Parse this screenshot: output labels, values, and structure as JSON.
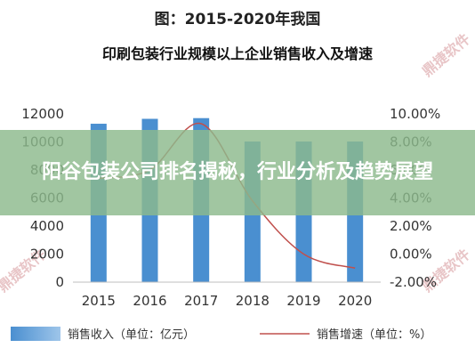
{
  "figure_label": "图：2015-2020年我国",
  "figure_subtitle": "印刷包装行业规模以上企业销售收入及增速",
  "overlay_title": "阳谷包装公司排名揭秘，行业分析及趋势展望",
  "watermark": "鼎捷软件",
  "colors": {
    "bar": "#4a8fd0",
    "bar_legend_light": "#9ec5ea",
    "line": "#c0504d",
    "overlay": "#8cb98c"
  },
  "chart_data": {
    "type": "bar",
    "title": "2015-2020年我国印刷包装行业规模以上企业销售收入及增速",
    "categories": [
      "2015",
      "2016",
      "2017",
      "2018",
      "2019",
      "2020"
    ],
    "x_tick_labels": [
      "2015",
      "2016",
      "2017",
      "2018",
      "2019",
      "2020"
    ],
    "y_left_tick_labels": [
      "0",
      "2000",
      "4000",
      "6000",
      "8000",
      "10000",
      "12000"
    ],
    "y_right_tick_labels": [
      "-2.00%",
      "0.00%",
      "2.00%",
      "4.00%",
      "6.00%",
      "8.00%",
      "10.00%"
    ],
    "ylim_left": [
      0,
      12000
    ],
    "ylim_right": [
      -2,
      10
    ],
    "grid": false,
    "legend_position": "bottom",
    "series": [
      {
        "name": "销售收入（单位：亿元）",
        "type": "bar",
        "axis": "left",
        "values": [
          11300,
          11650,
          11700,
          10030,
          10030,
          10030
        ]
      },
      {
        "name": "销售增速（单位：%）",
        "type": "line",
        "axis": "right",
        "values": [
          5.4,
          6.0,
          9.3,
          3.8,
          0.0,
          -1.0
        ]
      }
    ]
  }
}
